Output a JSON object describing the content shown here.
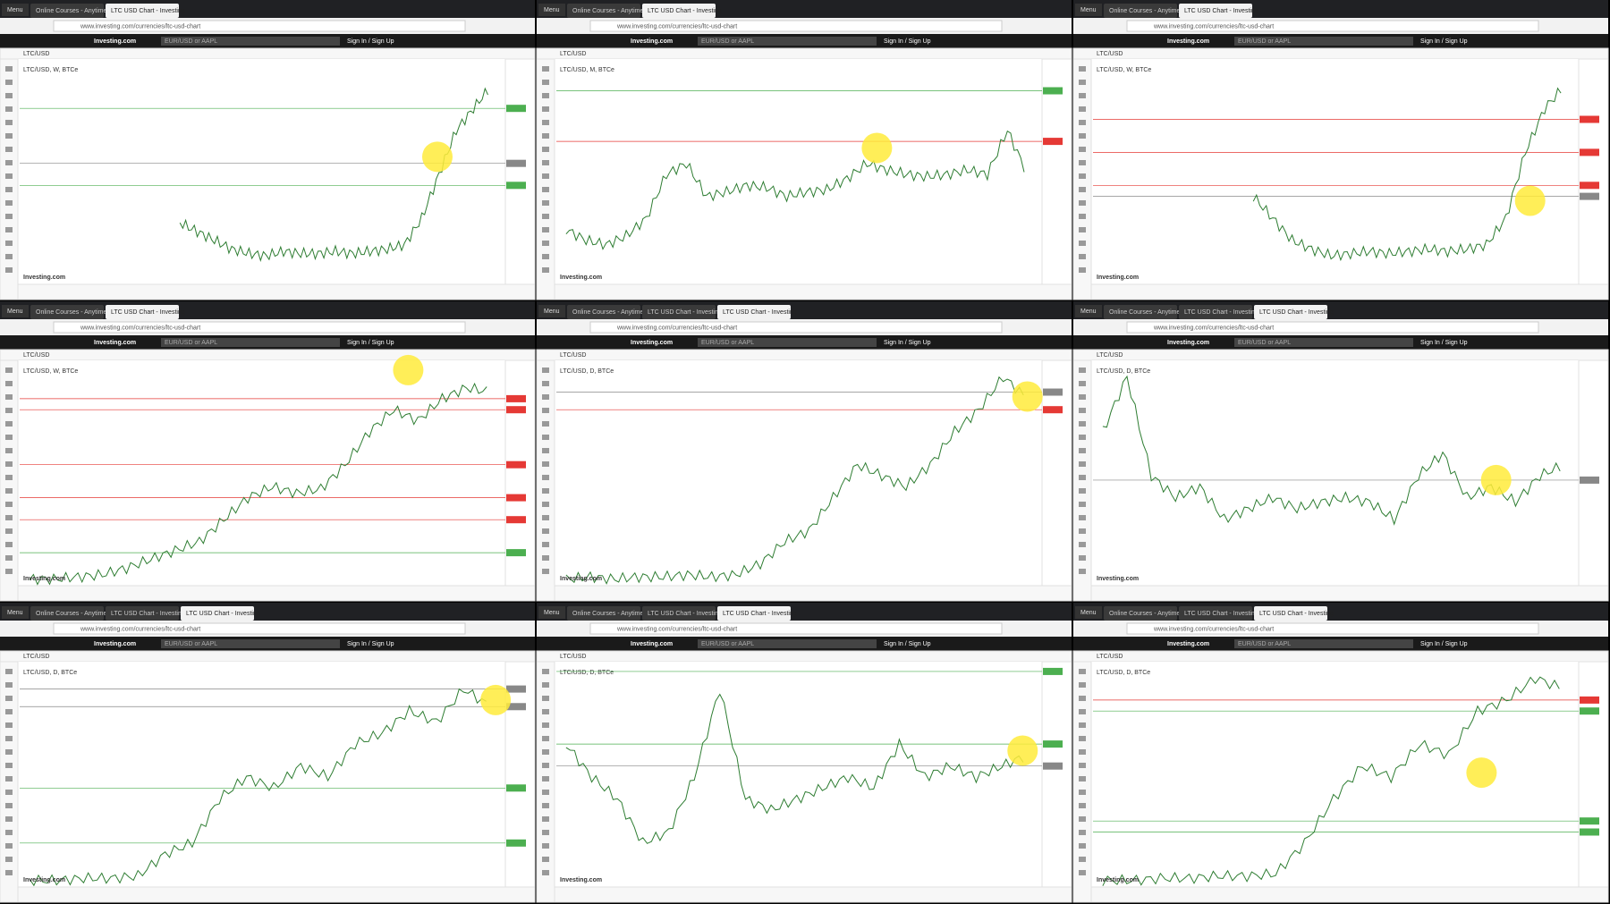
{
  "browser": {
    "menu": "Menu",
    "url": "www.investing.com/currencies/ltc-usd-chart"
  },
  "site": {
    "logo": "Investing.com",
    "search": "EUR/USD or AAPL",
    "signin": "Sign In / Sign Up",
    "symbol": "LTC/USD",
    "watermark": "Investing.com"
  },
  "panels": [
    {
      "tabs": [
        "Online Courses - Anytime",
        "LTC USD Chart - Investing"
      ],
      "legend": "LTC/USD, W, BTCe"
    },
    {
      "tabs": [
        "Online Courses - Anytime",
        "LTC USD Chart - Investing"
      ],
      "legend": "LTC/USD, M, BTCe"
    },
    {
      "tabs": [
        "Online Courses - Anytime",
        "LTC USD Chart - Investing"
      ],
      "legend": "LTC/USD, W, BTCe"
    },
    {
      "tabs": [
        "Online Courses - Anytime",
        "LTC USD Chart - Investing"
      ],
      "legend": "LTC/USD, W, BTCe"
    },
    {
      "tabs": [
        "Online Courses - Anytime",
        "LTC USD Chart - Investing",
        "LTC USD Chart - Investing"
      ],
      "legend": "LTC/USD, D, BTCe"
    },
    {
      "tabs": [
        "Online Courses - Anytime",
        "LTC USD Chart - Investing",
        "LTC USD Chart - Investing"
      ],
      "legend": "LTC/USD, D, BTCe"
    },
    {
      "tabs": [
        "Online Courses - Anytime",
        "LTC USD Chart - Investing",
        "LTC USD Chart - Investing"
      ],
      "legend": "LTC/USD, D, BTCe"
    },
    {
      "tabs": [
        "Online Courses - Anytime",
        "LTC USD Chart - Investing",
        "LTC USD Chart - Investing"
      ],
      "legend": "LTC/USD, D, BTCe"
    },
    {
      "tabs": [
        "Online Courses - Anytime",
        "LTC USD Chart - Investing",
        "LTC USD Chart - Investing"
      ],
      "legend": "LTC/USD, D, BTCe"
    }
  ]
}
